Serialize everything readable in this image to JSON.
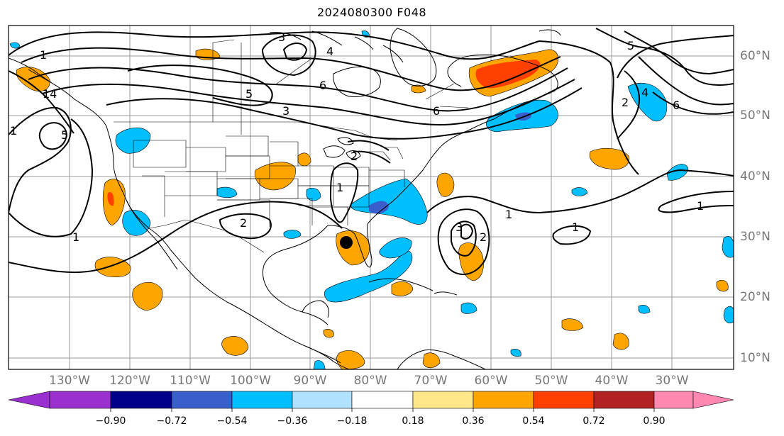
{
  "title": "2024080300 F048",
  "map": {
    "lon_labels": [
      "130°W",
      "120°W",
      "110°W",
      "100°W",
      "90°W",
      "80°W",
      "70°W",
      "60°W",
      "50°W",
      "40°W",
      "30°W"
    ],
    "lat_labels": [
      "60°N",
      "50°N",
      "40°N",
      "30°N",
      "20°N",
      "10°N"
    ],
    "contour_labels": [
      "1",
      "1",
      "1",
      "1",
      "1",
      "1",
      "1",
      "2",
      "2",
      "2",
      "2",
      "3",
      "3",
      "3",
      "4",
      "4",
      "5",
      "5",
      "5",
      "6",
      "6",
      "6",
      "14"
    ],
    "storm_marker": "filled-circle"
  },
  "colorbar": {
    "ticks": [
      "−0.90",
      "−0.72",
      "−0.54",
      "−0.36",
      "−0.18",
      "0.18",
      "0.36",
      "0.54",
      "0.72",
      "0.90"
    ],
    "colors": [
      "#9b30d0",
      "#00008b",
      "#3a5fcd",
      "#00bfff",
      "#b0e2ff",
      "#ffffff",
      "#ffe78a",
      "#ffa500",
      "#ff4000",
      "#b22222",
      "#ff88b0"
    ]
  }
}
